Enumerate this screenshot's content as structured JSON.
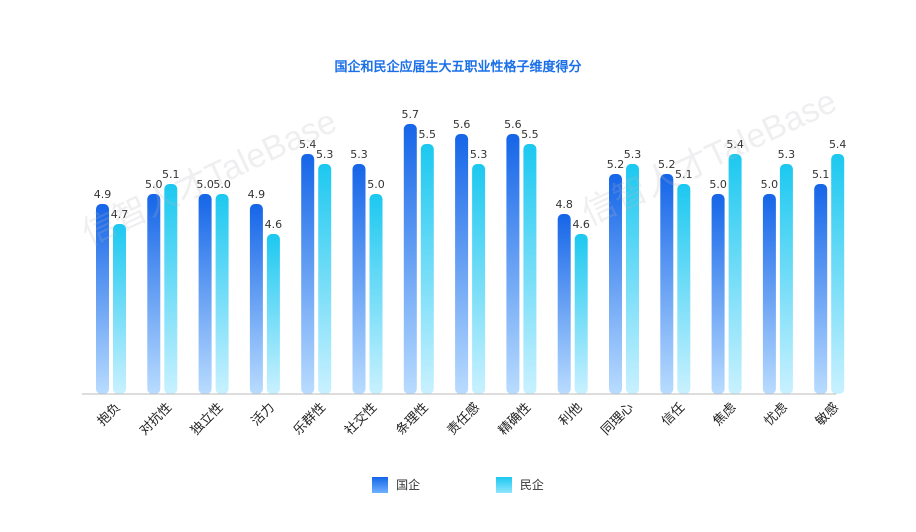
{
  "chart_data": {
    "type": "bar",
    "title": "国企和民企应届生大五职业性格子维度得分",
    "categories": [
      "抱负",
      "对抗性",
      "独立性",
      "活力",
      "乐群性",
      "社交性",
      "条理性",
      "责任感",
      "精确性",
      "利他",
      "同理心",
      "信任",
      "焦虑",
      "忧虑",
      "敏感"
    ],
    "series": [
      {
        "name": "国企",
        "values": [
          4.9,
          5.0,
          5.0,
          4.9,
          5.4,
          5.3,
          5.7,
          5.6,
          5.6,
          4.8,
          5.2,
          5.2,
          5.0,
          5.0,
          5.1
        ]
      },
      {
        "name": "民企",
        "values": [
          4.7,
          5.1,
          5.0,
          4.6,
          5.3,
          5.0,
          5.5,
          5.3,
          5.5,
          4.6,
          5.3,
          5.1,
          5.4,
          5.3,
          5.4
        ]
      }
    ],
    "colors": {
      "国企": "#1565e8",
      "民企": "#1cc8f0"
    },
    "legend_position": "bottom",
    "grid": false
  },
  "watermark": "信智人才TaleBase"
}
